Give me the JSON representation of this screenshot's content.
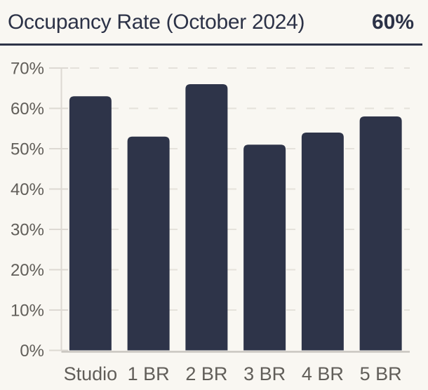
{
  "header": {
    "title": "Occupancy Rate (October 2024)",
    "kpi": "60%"
  },
  "colors": {
    "background": "#f9f7f2",
    "bar": "#2e3449",
    "title_text": "#2c3247",
    "divider": "#2d3348",
    "axis_text": "#615e59",
    "gridline": "#e5e2db",
    "tick_line": "#ddd9d3",
    "axis_line": "#ddd9d3",
    "baseline": "#c9c6c0"
  },
  "chart_data": {
    "type": "bar",
    "title": "Occupancy Rate (October 2024)",
    "kpi_label": "60%",
    "categories": [
      "Studio",
      "1 BR",
      "2 BR",
      "3 BR",
      "4 BR",
      "5 BR"
    ],
    "values": [
      63,
      53,
      66,
      51,
      54,
      58
    ],
    "unit": "%",
    "xlabel": "",
    "ylabel": "",
    "ylim": [
      0,
      70
    ],
    "ytick_step": 10,
    "ytick_labels": [
      "0%",
      "10%",
      "20%",
      "30%",
      "40%",
      "50%",
      "60%",
      "70%"
    ],
    "grid": "horizontal-dashed",
    "legend_position": "none"
  }
}
